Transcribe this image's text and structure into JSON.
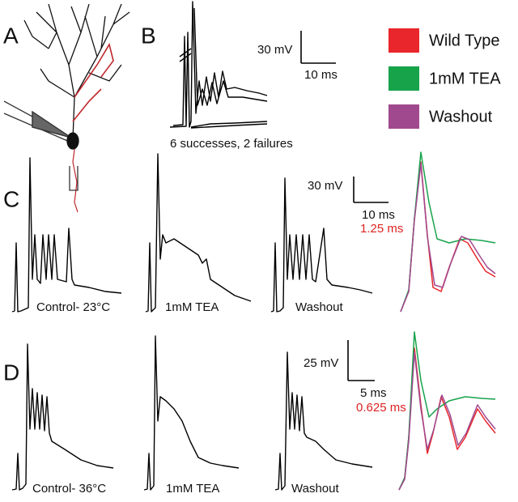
{
  "panels": [
    "A",
    "B",
    "C",
    "D"
  ],
  "legend": [
    {
      "label": "Wild Type",
      "color": "#e8262b"
    },
    {
      "label": "1mM TEA",
      "color": "#16a34a"
    },
    {
      "label": "Washout",
      "color": "#a0498f"
    }
  ],
  "panel_b": {
    "scale_y": "30 mV",
    "scale_x": "10 ms",
    "caption": "6 successes, 2 failures"
  },
  "panel_c": {
    "scale_y": "30 mV",
    "scale_x": "10 ms",
    "scale_x_zoom": "1.25 ms",
    "trace_labels": [
      "Control- 23°C",
      "1mM TEA",
      "Washout"
    ]
  },
  "panel_d": {
    "scale_y": "25 mV",
    "scale_x": "5 ms",
    "scale_x_zoom": "0.625 ms",
    "trace_labels": [
      "Control- 36°C",
      "1mM TEA",
      "Washout"
    ]
  }
}
